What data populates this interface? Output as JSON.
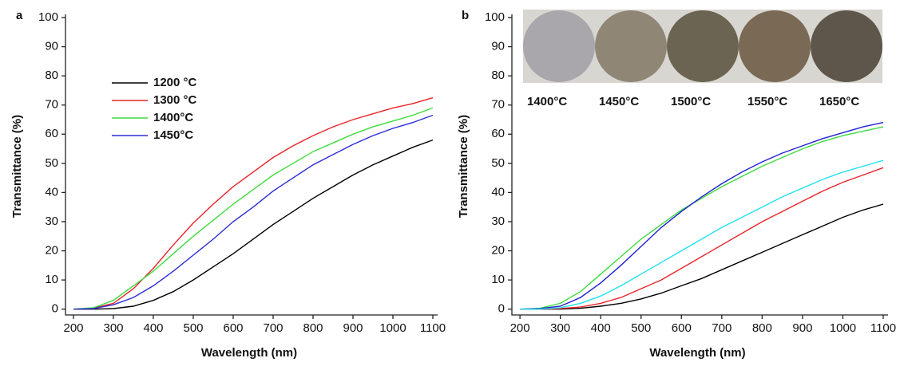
{
  "chart_data": [
    {
      "type": "line",
      "panel_label": "a",
      "xlabel": "Wavelength (nm)",
      "ylabel": "Transmittance (%)",
      "x": [
        200,
        250,
        300,
        350,
        400,
        450,
        500,
        550,
        600,
        650,
        700,
        750,
        800,
        850,
        900,
        950,
        1000,
        1050,
        1100
      ],
      "xlim": [
        180,
        1100
      ],
      "ylim": [
        -2,
        100
      ],
      "xticks": [
        200,
        300,
        400,
        500,
        600,
        700,
        800,
        900,
        1000,
        1100
      ],
      "yticks": [
        0,
        10,
        20,
        30,
        40,
        50,
        60,
        70,
        80,
        90,
        100
      ],
      "legend": "upper left",
      "series": [
        {
          "name": "1200 °C",
          "color": "#000000",
          "values": [
            0,
            0,
            0.2,
            1,
            3,
            6,
            10,
            14.5,
            19,
            24,
            29,
            33.5,
            38,
            42,
            46,
            49.5,
            52.5,
            55.5,
            58
          ]
        },
        {
          "name": "1300 °C",
          "color": "#e8242a",
          "values": [
            0,
            0.3,
            2,
            7,
            14,
            22,
            29.5,
            36,
            42,
            47,
            52,
            56,
            59.5,
            62.5,
            65,
            67,
            69,
            70.5,
            72.5
          ]
        },
        {
          "name": "1400°C",
          "color": "#3ddc3d",
          "values": [
            0,
            0.5,
            3,
            8,
            13,
            19,
            25,
            30.5,
            36,
            41,
            46,
            50,
            54,
            57,
            60,
            62.5,
            64.5,
            66.5,
            69
          ]
        },
        {
          "name": "1450°C",
          "color": "#2b2bd8",
          "values": [
            0,
            0.2,
            1.5,
            4,
            8,
            13,
            18.5,
            24,
            30,
            35,
            40.5,
            45,
            49.5,
            53,
            56.5,
            59.5,
            62,
            64,
            66.5
          ]
        }
      ]
    },
    {
      "type": "line",
      "panel_label": "b",
      "xlabel": "Wavelength (nm)",
      "ylabel": "Transmittance (%)",
      "x": [
        200,
        250,
        300,
        350,
        400,
        450,
        500,
        550,
        600,
        650,
        700,
        750,
        800,
        850,
        900,
        950,
        1000,
        1050,
        1100
      ],
      "xlim": [
        180,
        1100
      ],
      "ylim": [
        -2,
        100
      ],
      "xticks": [
        200,
        300,
        400,
        500,
        600,
        700,
        800,
        900,
        1000,
        1100
      ],
      "yticks": [
        0,
        10,
        20,
        30,
        40,
        50,
        60,
        70,
        80,
        90,
        100
      ],
      "legend": "top",
      "series": [
        {
          "name": "1400°C",
          "color": "#000000",
          "values": [
            0,
            0,
            0,
            0.3,
            1,
            2,
            3.5,
            5.5,
            8,
            10.5,
            13.5,
            16.5,
            19.5,
            22.5,
            25.5,
            28.5,
            31.5,
            34,
            36
          ]
        },
        {
          "name": "1450°C",
          "color": "#e8242a",
          "values": [
            0,
            0,
            0.2,
            0.7,
            2,
            4,
            7,
            10,
            14,
            18,
            22,
            26,
            30,
            33.5,
            37,
            40.5,
            43.5,
            46,
            48.5
          ]
        },
        {
          "name": "1500°C",
          "color": "#3ddc3d",
          "values": [
            0,
            0.3,
            2,
            6,
            12,
            18,
            24,
            29,
            34,
            38,
            42,
            45.5,
            49,
            52,
            55,
            57.5,
            59.5,
            61,
            62.5
          ]
        },
        {
          "name": "1550°C",
          "color": "#2020d0",
          "values": [
            0,
            0.2,
            1,
            4,
            9,
            15,
            21.5,
            28,
            33.5,
            38.5,
            43,
            47,
            50.5,
            53.5,
            56,
            58.5,
            60.5,
            62.5,
            64
          ]
        },
        {
          "name": "1650°C",
          "color": "#22e0f0",
          "values": [
            0,
            0,
            0.5,
            2,
            4.5,
            8,
            12,
            16,
            20,
            24,
            28,
            31.5,
            35,
            38.5,
            41.5,
            44.5,
            47,
            49,
            51
          ]
        }
      ]
    }
  ]
}
